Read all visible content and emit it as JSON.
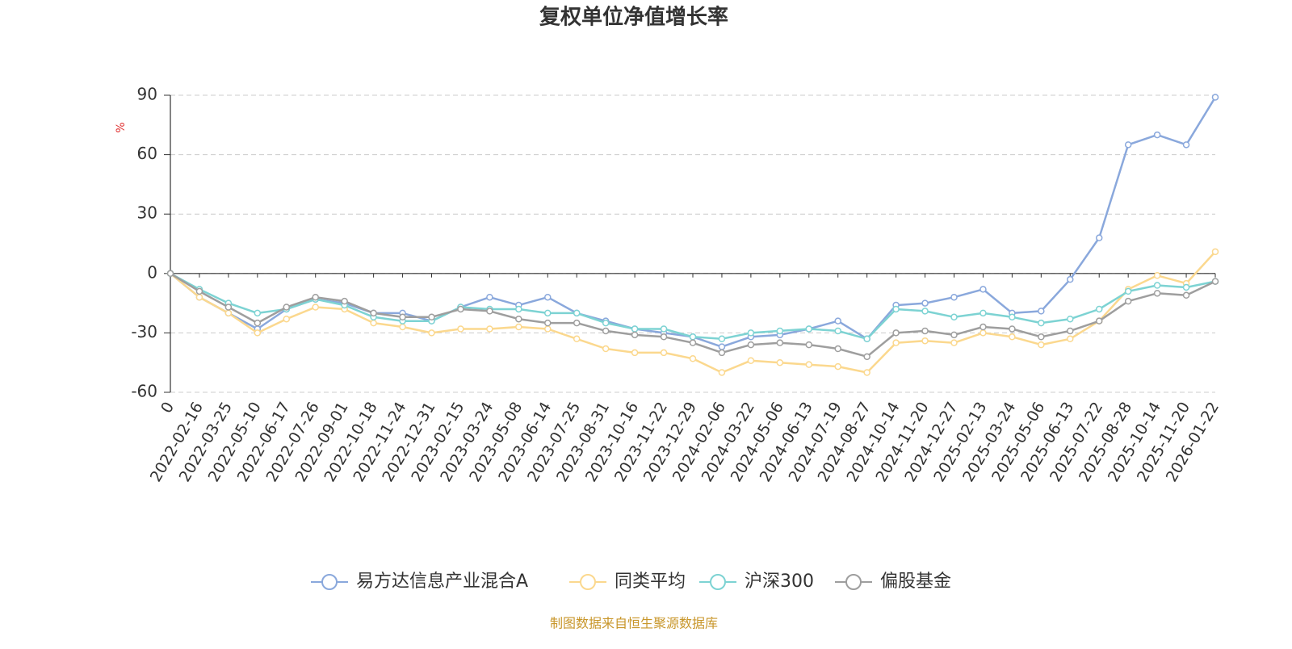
{
  "chart_data": {
    "type": "line",
    "title": "复权单位净值增长率",
    "y_unit": "%",
    "source": "制图数据来自恒生聚源数据库",
    "categories": [
      "0",
      "2022-02-16",
      "2022-03-25",
      "2022-05-10",
      "2022-06-17",
      "2022-07-26",
      "2022-09-01",
      "2022-10-18",
      "2022-11-24",
      "2022-12-31",
      "2023-02-15",
      "2023-03-24",
      "2023-05-08",
      "2023-06-14",
      "2023-07-25",
      "2023-08-31",
      "2023-10-16",
      "2023-11-22",
      "2023-12-29",
      "2024-02-06",
      "2024-03-22",
      "2024-05-06",
      "2024-06-13",
      "2024-07-19",
      "2024-08-27",
      "2024-10-14",
      "2024-11-20",
      "2024-12-27",
      "2025-02-13",
      "2025-03-24",
      "2025-05-06",
      "2025-06-13",
      "2025-07-22",
      "2025-08-28",
      "2025-10-14",
      "2025-11-20",
      "2026-01-22"
    ],
    "ylim": [
      -60,
      90
    ],
    "yticks": [
      -60,
      -30,
      0,
      30,
      60,
      90
    ],
    "grid": true,
    "legend": "bottom",
    "series": [
      {
        "name": "易方达信息产业混合A",
        "color": "#8aa8dc",
        "values": [
          0,
          -12,
          -20,
          -28,
          -18,
          -13,
          -15,
          -20,
          -20,
          -24,
          -17,
          -12,
          -16,
          -12,
          -20,
          -24,
          -28,
          -30,
          -32,
          -37,
          -32,
          -31,
          -28,
          -24,
          -33,
          -16,
          -15,
          -12,
          -8,
          -20,
          -19,
          -3,
          18,
          65,
          70,
          65,
          89
        ]
      },
      {
        "name": "同类平均",
        "color": "#fbd88e",
        "values": [
          0,
          -12,
          -20,
          -30,
          -23,
          -17,
          -18,
          -25,
          -27,
          -30,
          -28,
          -28,
          -27,
          -28,
          -33,
          -38,
          -40,
          -40,
          -43,
          -50,
          -44,
          -45,
          -46,
          -47,
          -50,
          -35,
          -34,
          -35,
          -30,
          -32,
          -36,
          -33,
          -24,
          -8,
          -1,
          -5,
          11
        ]
      },
      {
        "name": "沪深300",
        "color": "#7dd3d3",
        "values": [
          0,
          -8,
          -15,
          -20,
          -18,
          -13,
          -16,
          -22,
          -24,
          -24,
          -17,
          -18,
          -18,
          -20,
          -20,
          -25,
          -28,
          -28,
          -32,
          -33,
          -30,
          -29,
          -28,
          -29,
          -33,
          -18,
          -19,
          -22,
          -20,
          -22,
          -25,
          -23,
          -18,
          -9,
          -6,
          -7,
          -4
        ]
      },
      {
        "name": "偏股基金",
        "color": "#9e9e9e",
        "values": [
          0,
          -9,
          -17,
          -25,
          -17,
          -12,
          -14,
          -20,
          -22,
          -22,
          -18,
          -19,
          -23,
          -25,
          -25,
          -29,
          -31,
          -32,
          -35,
          -40,
          -36,
          -35,
          -36,
          -38,
          -42,
          -30,
          -29,
          -31,
          -27,
          -28,
          -32,
          -29,
          -24,
          -14,
          -10,
          -11,
          -4
        ]
      }
    ]
  }
}
